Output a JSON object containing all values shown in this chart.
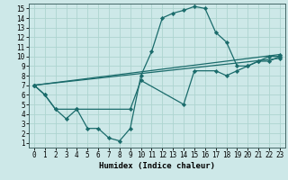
{
  "title": "",
  "xlabel": "Humidex (Indice chaleur)",
  "xlim": [
    -0.5,
    23.5
  ],
  "ylim": [
    0.5,
    15.5
  ],
  "xticks": [
    0,
    1,
    2,
    3,
    4,
    5,
    6,
    7,
    8,
    9,
    10,
    11,
    12,
    13,
    14,
    15,
    16,
    17,
    18,
    19,
    20,
    21,
    22,
    23
  ],
  "yticks": [
    1,
    2,
    3,
    4,
    5,
    6,
    7,
    8,
    9,
    10,
    11,
    12,
    13,
    14,
    15
  ],
  "bg_color": "#cde8e8",
  "grid_color": "#add4d0",
  "line_color": "#1a6b6b",
  "lines": [
    {
      "x": [
        0,
        1,
        2,
        3,
        4,
        5,
        6,
        7,
        8,
        9,
        10,
        11,
        12,
        13,
        14,
        15,
        16,
        17,
        18,
        19,
        20,
        21,
        22,
        23
      ],
      "y": [
        7.0,
        6.0,
        4.5,
        3.5,
        4.5,
        2.5,
        2.5,
        1.5,
        1.2,
        2.5,
        8.0,
        10.5,
        14.0,
        14.5,
        14.8,
        15.2,
        15.0,
        12.5,
        11.5,
        9.0,
        9.0,
        9.5,
        10.0,
        10.0
      ]
    },
    {
      "x": [
        0,
        1,
        2,
        4,
        9,
        10,
        14,
        15,
        17,
        18,
        19,
        20,
        21,
        22,
        23
      ],
      "y": [
        7.0,
        6.0,
        4.5,
        4.5,
        4.5,
        7.5,
        5.0,
        8.5,
        8.5,
        8.0,
        8.5,
        9.0,
        9.5,
        9.5,
        10.0
      ]
    },
    {
      "x": [
        0,
        23
      ],
      "y": [
        7.0,
        10.2
      ]
    },
    {
      "x": [
        0,
        23
      ],
      "y": [
        7.0,
        9.8
      ]
    }
  ],
  "marker": "D",
  "markersize": 2.2,
  "linewidth": 0.9,
  "figsize": [
    3.2,
    2.0
  ],
  "dpi": 100
}
